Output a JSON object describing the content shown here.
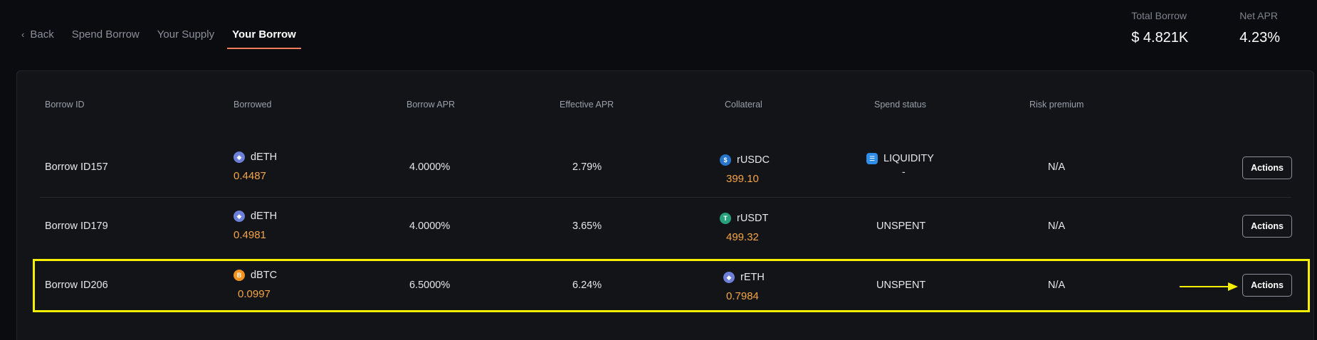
{
  "nav": {
    "back_label": "Back",
    "tabs": [
      "Spend Borrow",
      "Your Supply",
      "Your Borrow"
    ],
    "active_tab": "Your Borrow"
  },
  "stats": {
    "total_borrow_label": "Total Borrow",
    "total_borrow_value": "$ 4.821K",
    "net_apr_label": "Net APR",
    "net_apr_value": "4.23%"
  },
  "table": {
    "headers": [
      "Borrow ID",
      "Borrowed",
      "Borrow APR",
      "Effective APR",
      "Collateral",
      "Spend status",
      "Risk premium"
    ],
    "rows": [
      {
        "id": "Borrow ID157",
        "borrowed_token": "dETH",
        "borrowed_amount": "0.4487",
        "borrow_apr": "4.0000%",
        "effective_apr": "2.79%",
        "collateral_token": "rUSDC",
        "collateral_amount": "399.10",
        "spend_status": "LIQUIDITY",
        "spend_sub": "-",
        "risk_premium": "N/A",
        "action_label": "Actions"
      },
      {
        "id": "Borrow ID179",
        "borrowed_token": "dETH",
        "borrowed_amount": "0.4981",
        "borrow_apr": "4.0000%",
        "effective_apr": "3.65%",
        "collateral_token": "rUSDT",
        "collateral_amount": "499.32",
        "spend_status": "UNSPENT",
        "risk_premium": "N/A",
        "action_label": "Actions"
      },
      {
        "id": "Borrow ID206",
        "borrowed_token": "dBTC",
        "borrowed_amount": "0.0997",
        "borrow_apr": "6.5000%",
        "effective_apr": "6.24%",
        "collateral_token": "rETH",
        "collateral_amount": "0.7984",
        "spend_status": "UNSPENT",
        "risk_premium": "N/A",
        "action_label": "Actions"
      }
    ]
  },
  "colors": {
    "accent_tab_underline": "#f07d5c",
    "amount": "#f5a547",
    "highlight": "#f4f000"
  },
  "icons": {
    "eth": "ethereum-icon",
    "btc": "bitcoin-icon",
    "usdc": "usdc-icon",
    "usdt": "tether-icon",
    "liquidity": "liquidity-icon"
  }
}
